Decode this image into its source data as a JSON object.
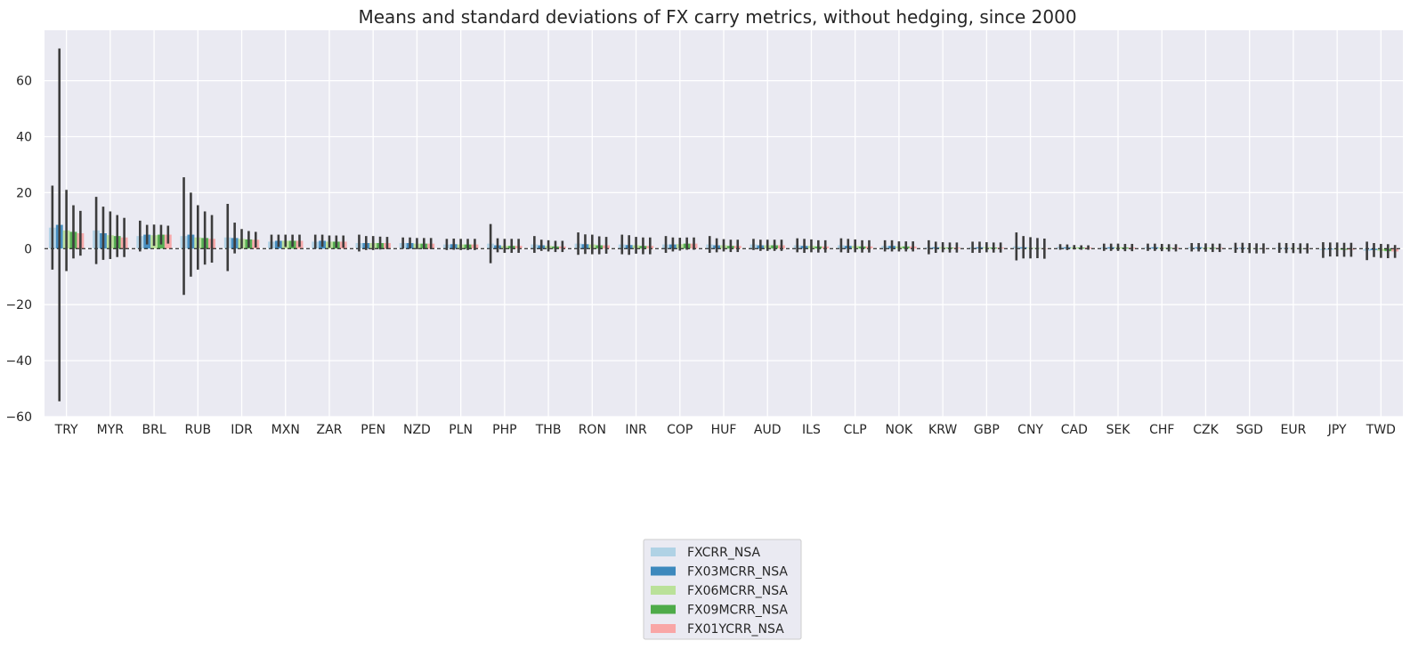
{
  "chart_data": {
    "type": "bar",
    "title": "Means and standard deviations of FX carry metrics, without hedging, since 2000",
    "xlabel": "",
    "ylabel": "",
    "ylim": [
      -60,
      78
    ],
    "yticks": [
      -60,
      -40,
      -20,
      0,
      20,
      40,
      60
    ],
    "grid": true,
    "zero_line": "dashed",
    "legend_position": "bottom-center",
    "categories": [
      "TRY",
      "MYR",
      "BRL",
      "RUB",
      "IDR",
      "MXN",
      "ZAR",
      "PEN",
      "NZD",
      "PLN",
      "PHP",
      "THB",
      "RON",
      "INR",
      "COP",
      "HUF",
      "AUD",
      "ILS",
      "CLP",
      "NOK",
      "KRW",
      "GBP",
      "CNY",
      "CAD",
      "SEK",
      "CHF",
      "CZK",
      "SGD",
      "EUR",
      "JPY",
      "TWD"
    ],
    "series": [
      {
        "name": "FXCRR_NSA",
        "color": "#a6cee3",
        "values": [
          7.5,
          6.5,
          4.5,
          4.5,
          4.0,
          2.5,
          2.5,
          2.0,
          2.0,
          1.5,
          1.8,
          1.5,
          1.8,
          1.5,
          1.5,
          1.5,
          1.5,
          1.2,
          1.2,
          1.0,
          0.5,
          0.5,
          0.8,
          0.6,
          0.5,
          0.5,
          0.5,
          0.3,
          0.3,
          -0.5,
          -0.8
        ],
        "sd": [
          15,
          12,
          5.5,
          21,
          12,
          2.5,
          2.5,
          3,
          2,
          2,
          7,
          3,
          4,
          3.5,
          3,
          3,
          2,
          2.5,
          2.5,
          2,
          2.5,
          2,
          5,
          1,
          1.3,
          1.3,
          1.5,
          1.8,
          1.8,
          2.8,
          3.3
        ]
      },
      {
        "name": "FX03MCRR_NSA",
        "color": "#1f78b4",
        "values": [
          8.5,
          5.5,
          5.0,
          5.0,
          3.8,
          2.8,
          2.8,
          2.0,
          2.0,
          1.6,
          1.2,
          1.2,
          1.6,
          1.3,
          1.5,
          1.2,
          1.2,
          1.0,
          1.0,
          1.0,
          0.5,
          0.5,
          0.5,
          0.5,
          0.5,
          0.5,
          0.5,
          0.3,
          0.2,
          -0.3,
          -0.5
        ],
        "sd": [
          63,
          9.5,
          3.5,
          15,
          5.5,
          2.2,
          2.2,
          2.5,
          2,
          2,
          2.5,
          2,
          3.5,
          3.5,
          2.5,
          2.5,
          2,
          2.5,
          2.5,
          2,
          2,
          2,
          4,
          1,
          1.3,
          1.3,
          1.5,
          1.8,
          1.8,
          2.5,
          2.5
        ]
      },
      {
        "name": "FX06MCRR_NSA",
        "color": "#b2df8a",
        "values": [
          6.5,
          4.8,
          4.8,
          4.0,
          3.5,
          2.8,
          2.5,
          2.0,
          1.8,
          1.5,
          1.0,
          1.0,
          1.5,
          1.2,
          1.6,
          1.2,
          1.2,
          1.0,
          1.0,
          0.8,
          0.5,
          0.5,
          0.3,
          0.5,
          0.5,
          0.4,
          0.4,
          0.2,
          0.2,
          -0.3,
          -0.8
        ],
        "sd": [
          14.5,
          8.5,
          3.8,
          11.5,
          3.5,
          2.2,
          2.2,
          2.5,
          2,
          2,
          2.5,
          2,
          3.5,
          3,
          2.3,
          2.2,
          2,
          2.3,
          2.3,
          1.8,
          1.8,
          1.8,
          3.8,
          0.8,
          1.3,
          1.3,
          1.5,
          1.8,
          1.8,
          2.5,
          2.5
        ]
      },
      {
        "name": "FX09MCRR_NSA",
        "color": "#33a02c",
        "values": [
          6.0,
          4.5,
          5.0,
          3.8,
          3.3,
          2.8,
          2.5,
          2.0,
          1.8,
          1.5,
          1.0,
          0.8,
          1.2,
          1.0,
          1.8,
          1.0,
          1.2,
          0.8,
          0.8,
          0.8,
          0.4,
          0.4,
          0.2,
          0.4,
          0.4,
          0.3,
          0.3,
          0.1,
          0.1,
          -0.4,
          -0.9
        ],
        "sd": [
          9.5,
          7.5,
          3.5,
          9.5,
          3,
          2.2,
          2.2,
          2.3,
          2,
          2,
          2.5,
          2,
          3.2,
          3,
          2.2,
          2.2,
          2,
          2.2,
          2.2,
          1.8,
          1.8,
          1.8,
          3.6,
          0.8,
          1.3,
          1.3,
          1.5,
          1.8,
          1.8,
          2.5,
          2.5
        ]
      },
      {
        "name": "FX01YCRR_NSA",
        "color": "#fb9a99",
        "values": [
          5.5,
          4.0,
          5.0,
          3.5,
          3.2,
          2.8,
          2.5,
          2.0,
          1.8,
          1.5,
          1.0,
          0.8,
          1.2,
          1.0,
          1.8,
          1.0,
          1.2,
          0.8,
          0.8,
          0.8,
          0.4,
          0.4,
          0.0,
          0.4,
          0.4,
          0.3,
          0.3,
          0.1,
          0.1,
          -0.4,
          -1.0
        ],
        "sd": [
          8,
          7,
          3.2,
          8.5,
          2.8,
          2.2,
          2.2,
          2.2,
          2,
          2,
          2.5,
          2,
          3,
          3,
          2.2,
          2.2,
          2,
          2.2,
          2.2,
          1.8,
          1.8,
          1.8,
          3.6,
          0.8,
          1.3,
          1.3,
          1.5,
          1.8,
          1.8,
          2.5,
          2.3
        ]
      }
    ]
  }
}
